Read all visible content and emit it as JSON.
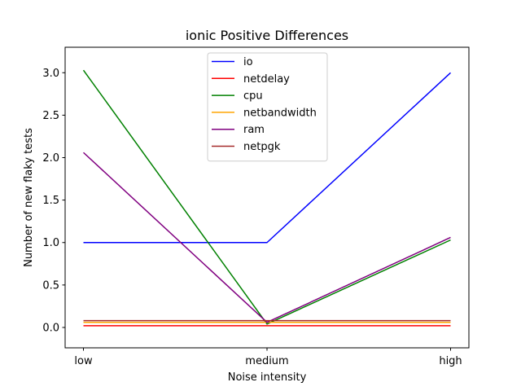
{
  "chart_data": {
    "type": "line",
    "title": "ionic Positive Differences",
    "xlabel": "Noise intensity",
    "ylabel": "Number of new flaky tests",
    "categories": [
      "low",
      "medium",
      "high"
    ],
    "ylim": [
      -0.24,
      3.3
    ],
    "yticks": [
      "0.0",
      "0.5",
      "1.0",
      "1.5",
      "2.0",
      "2.5",
      "3.0"
    ],
    "grid": false,
    "legend_position": "top-center",
    "series": [
      {
        "name": "io",
        "color": "#0000ff",
        "values": [
          1.0,
          1.0,
          3.0
        ]
      },
      {
        "name": "netdelay",
        "color": "#ff0000",
        "values": [
          0.02,
          0.02,
          0.02
        ]
      },
      {
        "name": "cpu",
        "color": "#008000",
        "values": [
          3.03,
          0.04,
          1.03
        ]
      },
      {
        "name": "netbandwidth",
        "color": "#ffa500",
        "values": [
          0.06,
          0.06,
          0.06
        ]
      },
      {
        "name": "ram",
        "color": "#800080",
        "values": [
          2.06,
          0.06,
          1.06
        ]
      },
      {
        "name": "netpgk",
        "color": "#a52a2a",
        "values": [
          0.08,
          0.08,
          0.08
        ]
      }
    ]
  }
}
